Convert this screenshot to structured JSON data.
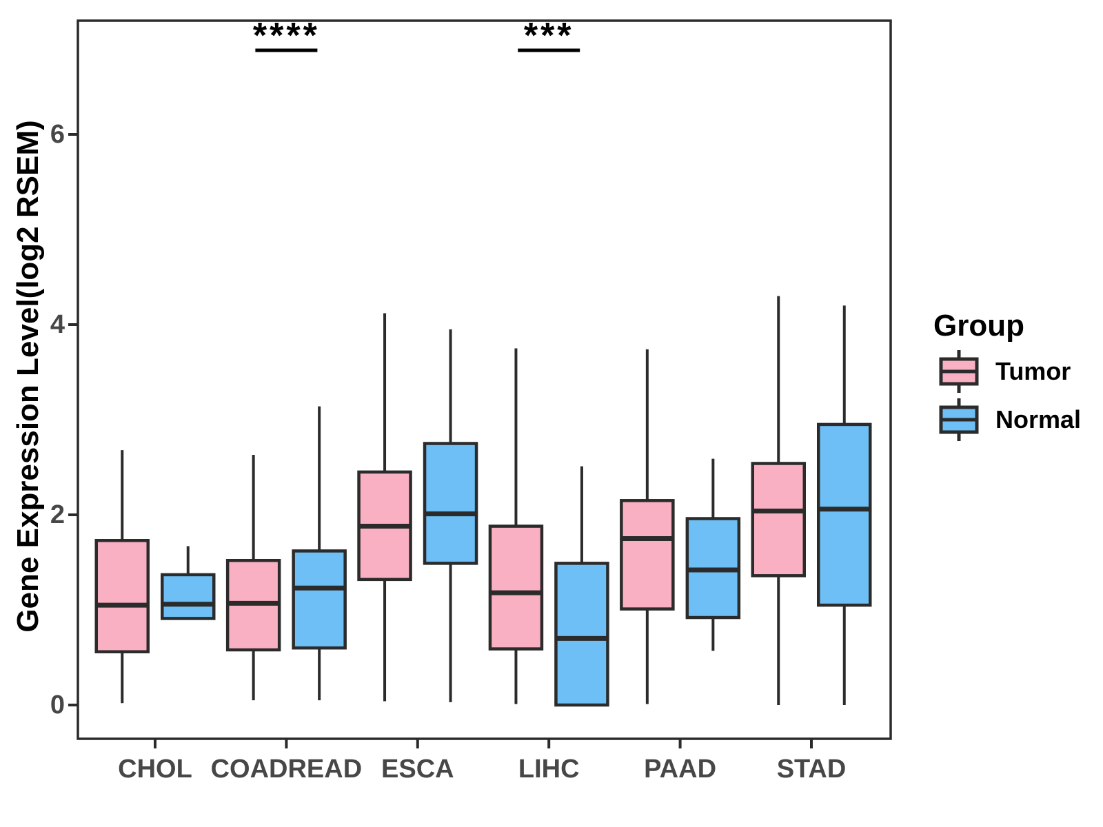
{
  "legend": {
    "title": "Group",
    "entries": [
      {
        "label": "Tumor",
        "color": "#FAB0C3"
      },
      {
        "label": "Normal",
        "color": "#6EBFF5"
      }
    ]
  },
  "colors": {
    "box_stroke": "#2b2b2b",
    "axis_stroke": "#2b2b2b",
    "tick_label": "#474747"
  },
  "chart_data": {
    "type": "boxplot",
    "title": "",
    "xlabel": "",
    "ylabel": "Gene Expression Level(log2 RSEM)",
    "categories": [
      "CHOL",
      "COADREAD",
      "ESCA",
      "LIHC",
      "PAAD",
      "STAD"
    ],
    "y_ticks": [
      0,
      2,
      4,
      6
    ],
    "ylim": [
      -0.36,
      7.2
    ],
    "grid": false,
    "legend_position": "right",
    "series": [
      {
        "name": "Tumor",
        "fill": "#FAB0C3",
        "boxes": [
          {
            "category": "CHOL",
            "min": 0.02,
            "q1": 0.56,
            "median": 1.05,
            "q3": 1.73,
            "max": 2.68
          },
          {
            "category": "COADREAD",
            "min": 0.05,
            "q1": 0.58,
            "median": 1.07,
            "q3": 1.52,
            "max": 2.63
          },
          {
            "category": "ESCA",
            "min": 0.04,
            "q1": 1.32,
            "median": 1.88,
            "q3": 2.45,
            "max": 4.12
          },
          {
            "category": "LIHC",
            "min": 0.01,
            "q1": 0.59,
            "median": 1.18,
            "q3": 1.88,
            "max": 3.75
          },
          {
            "category": "PAAD",
            "min": 0.01,
            "q1": 1.01,
            "median": 1.75,
            "q3": 2.15,
            "max": 3.74
          },
          {
            "category": "STAD",
            "min": 0.0,
            "q1": 1.36,
            "median": 2.04,
            "q3": 2.54,
            "max": 4.3
          }
        ]
      },
      {
        "name": "Normal",
        "fill": "#6EBFF5",
        "boxes": [
          {
            "category": "CHOL",
            "min": 0.91,
            "q1": 0.91,
            "median": 1.06,
            "q3": 1.37,
            "max": 1.67
          },
          {
            "category": "COADREAD",
            "min": 0.05,
            "q1": 0.6,
            "median": 1.23,
            "q3": 1.62,
            "max": 3.14
          },
          {
            "category": "ESCA",
            "min": 0.03,
            "q1": 1.49,
            "median": 2.01,
            "q3": 2.75,
            "max": 3.95
          },
          {
            "category": "LIHC",
            "min": 0.0,
            "q1": 0.0,
            "median": 0.7,
            "q3": 1.49,
            "max": 2.51
          },
          {
            "category": "PAAD",
            "min": 0.57,
            "q1": 0.92,
            "median": 1.42,
            "q3": 1.96,
            "max": 2.59
          },
          {
            "category": "STAD",
            "min": 0.0,
            "q1": 1.05,
            "median": 2.06,
            "q3": 2.95,
            "max": 4.2
          }
        ]
      }
    ],
    "significance": [
      {
        "text": "****",
        "category": "COADREAD"
      },
      {
        "text": "***",
        "category": "LIHC"
      }
    ]
  }
}
